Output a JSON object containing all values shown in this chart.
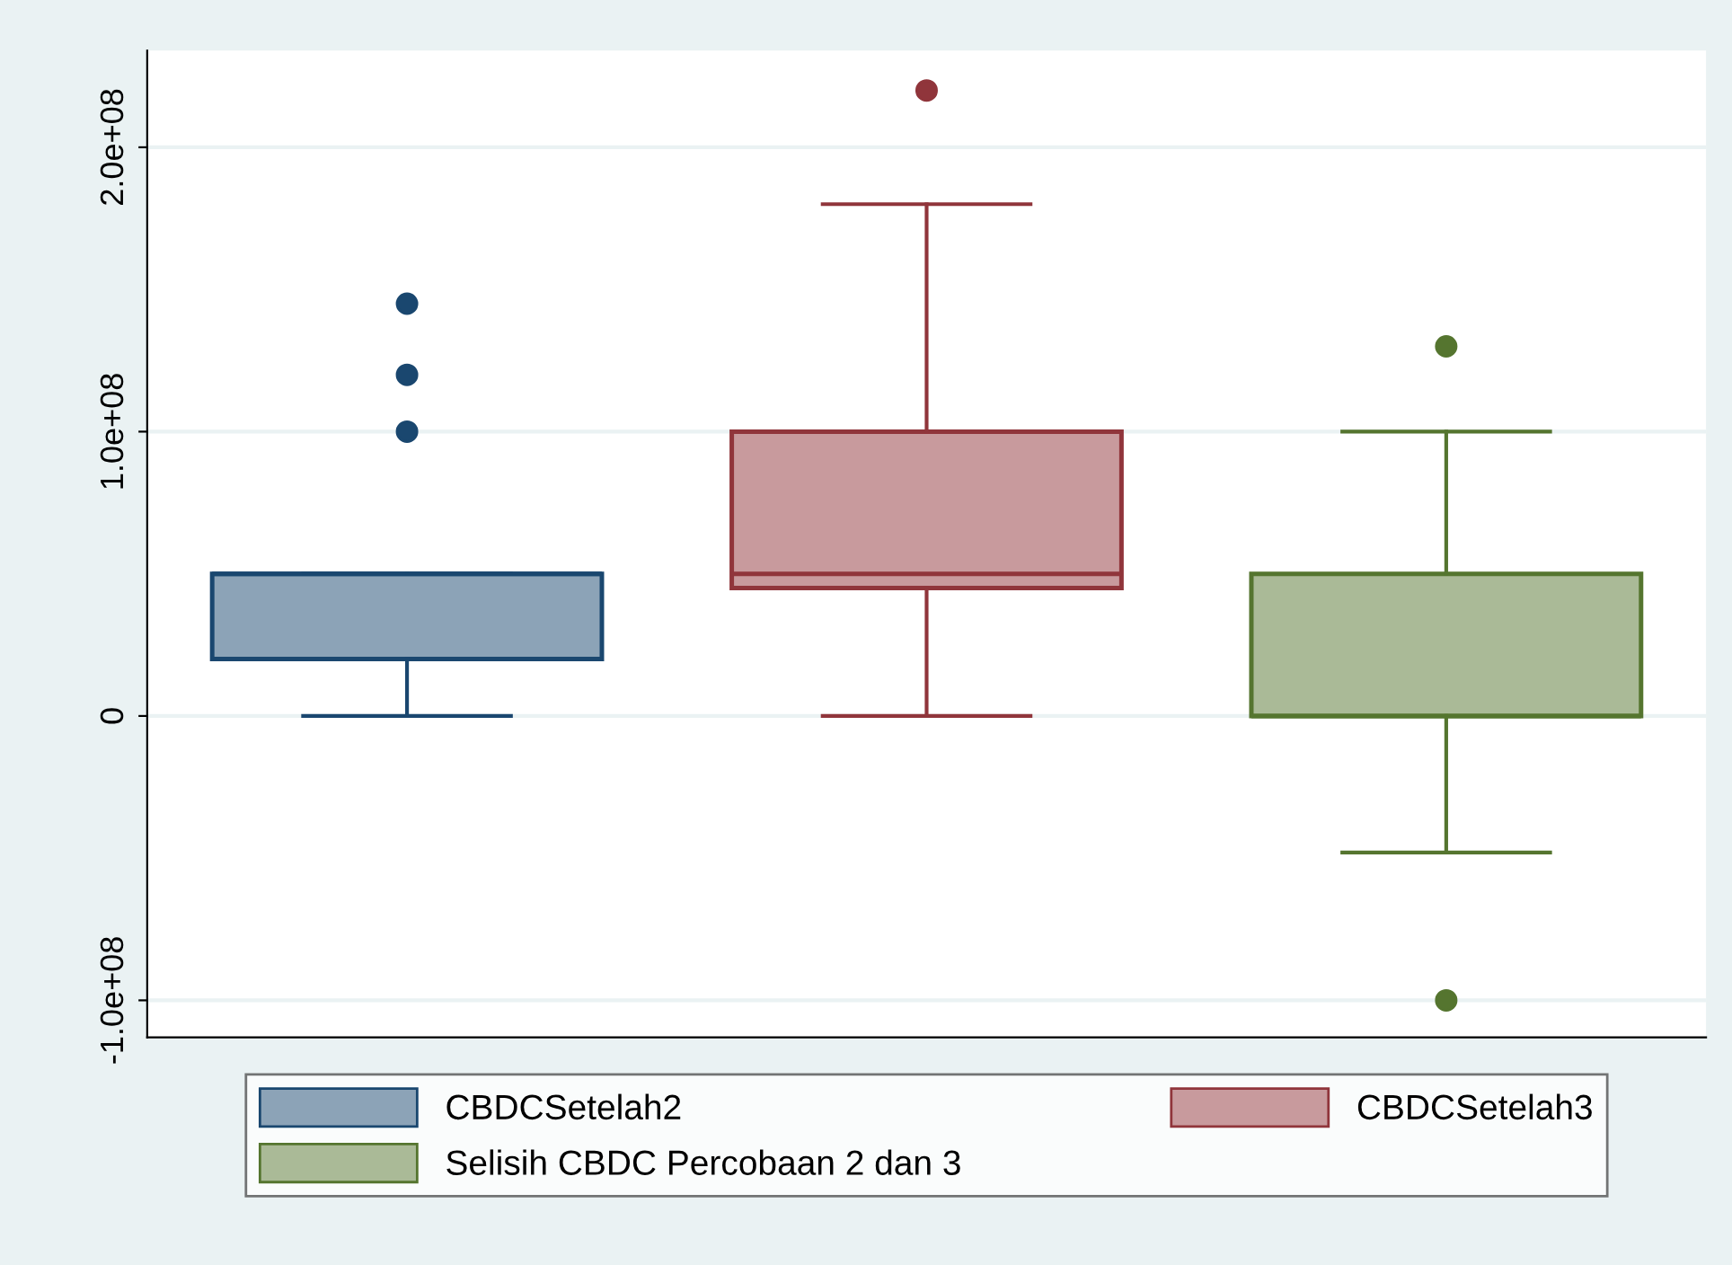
{
  "chart_data": {
    "type": "box",
    "categories": [
      null,
      null,
      null
    ],
    "series": [
      {
        "name": "CBDCSetelah2",
        "color": "#1a476f",
        "boxes": [
          {
            "low": 0,
            "q1": 20000000,
            "median": 50000000,
            "q3": 50000000,
            "high": 50000000,
            "outliers": [
              100000000,
              120000000,
              145000000
            ]
          },
          null,
          null
        ]
      },
      {
        "name": "CBDCSetelah3",
        "color": "#90353b",
        "boxes": [
          null,
          {
            "low": 0,
            "q1": 45000000,
            "median": 50000000,
            "q3": 100000000,
            "high": 180000000,
            "outliers": [
              220000000
            ]
          },
          null
        ]
      },
      {
        "name": "Selisih CBDC Percobaan 2 dan 3",
        "color": "#55752f",
        "boxes": [
          null,
          null,
          {
            "low": -48000000,
            "q1": 0,
            "median": 0,
            "q3": 50000000,
            "high": 100000000,
            "outliers": [
              130000000,
              -100000000
            ]
          }
        ]
      }
    ],
    "ylim": [
      -113000000,
      234000000
    ],
    "yticks": [
      {
        "value": -100000000,
        "label": "-1.0e+08"
      },
      {
        "value": 0,
        "label": "0"
      },
      {
        "value": 100000000,
        "label": "1.0e+08"
      },
      {
        "value": 200000000,
        "label": "2.0e+08"
      }
    ],
    "grid": "y",
    "legend": "bottom",
    "tick_labels": "y"
  }
}
